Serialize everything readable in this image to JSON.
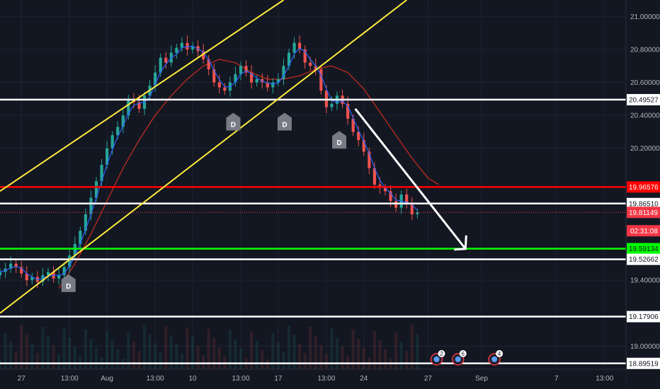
{
  "chart_data": {
    "type": "candlestick",
    "title": "",
    "xlabel": "",
    "ylabel": "",
    "ylim": [
      18.86,
      21.1
    ],
    "grid": true,
    "y_ticks": [
      "21.00000",
      "20.80000",
      "20.60000",
      "20.40000",
      "20.20000",
      "19.40000",
      "19.00000"
    ],
    "x_ticks": [
      {
        "label": "27",
        "t": 2
      },
      {
        "label": "13:00",
        "t": 6.5
      },
      {
        "label": "Aug",
        "t": 10
      },
      {
        "label": "13:00",
        "t": 14.5
      },
      {
        "label": "10",
        "t": 18
      },
      {
        "label": "13:00",
        "t": 22.5
      },
      {
        "label": "17",
        "t": 26
      },
      {
        "label": "13:00",
        "t": 30.5
      },
      {
        "label": "24",
        "t": 34
      },
      {
        "label": "27",
        "t": 40
      },
      {
        "label": "Sep",
        "t": 45
      },
      {
        "label": "7",
        "t": 52
      },
      {
        "label": "13:00",
        "t": 56.5
      }
    ],
    "x_range": [
      0,
      58.5
    ],
    "levels": [
      {
        "price": 20.49527,
        "label": "20.49527",
        "color": "#ffffff",
        "tag_bg": "#ffffff",
        "tag_fg": "#131722"
      },
      {
        "price": 19.96576,
        "label": "19.96576",
        "color": "#ff0000",
        "tag_bg": "#ff0000",
        "tag_fg": "#ffffff"
      },
      {
        "price": 19.8651,
        "label": "19.86510",
        "color": "#ffffff",
        "tag_bg": "#ffffff",
        "tag_fg": "#131722"
      },
      {
        "price": 19.59134,
        "label": "19.59134",
        "color": "#00ff00",
        "tag_bg": "#00ff00",
        "tag_fg": "#131722"
      },
      {
        "price": 19.52662,
        "label": "19.52662",
        "color": "#ffffff",
        "tag_bg": "#ffffff",
        "tag_fg": "#131722"
      },
      {
        "price": 19.17906,
        "label": "19.17906",
        "color": "#ffffff",
        "tag_bg": "#ffffff",
        "tag_fg": "#131722"
      },
      {
        "price": 18.89519,
        "label": "18.89519",
        "color": "#ffffff",
        "tag_bg": "#ffffff",
        "tag_fg": "#131722"
      }
    ],
    "current_price": {
      "price": 19.81149,
      "label": "19.81149",
      "countdown": "02:31:08",
      "color": "#f23645"
    },
    "trendlines": [
      {
        "t1": 0,
        "p1": 19.94,
        "t2": 26.5,
        "p2": 21.1,
        "color": "#ffeb3b"
      },
      {
        "t1": 0,
        "p1": 19.2,
        "t2": 38,
        "p2": 21.1,
        "color": "#ffeb3b"
      }
    ],
    "arrow": {
      "t1": 33.2,
      "p1": 20.44,
      "t2": 43.5,
      "p2": 19.59,
      "color": "#ffffff"
    },
    "markers": [
      {
        "label": "D",
        "t": 6.4,
        "p": 19.38
      },
      {
        "label": "D",
        "t": 21.8,
        "p": 20.36
      },
      {
        "label": "D",
        "t": 26.6,
        "p": 20.36
      },
      {
        "label": "D",
        "t": 31.7,
        "p": 20.25
      }
    ],
    "events": [
      {
        "label": "2",
        "t": 40.8
      },
      {
        "label": "6",
        "t": 42.8
      },
      {
        "label": "4",
        "t": 46.2
      }
    ],
    "slow_ma": {
      "color": "#b22a1e",
      "t": [
        5.5,
        7,
        8.5,
        10,
        11.5,
        13,
        14.5,
        16,
        17.5,
        19,
        20.5,
        22,
        23.5,
        25,
        26.5,
        28,
        29.5,
        31,
        32.5,
        34,
        35.5,
        37,
        38.5,
        40,
        41
      ],
      "p": [
        19.35,
        19.5,
        19.68,
        19.88,
        20.08,
        20.25,
        20.4,
        20.52,
        20.62,
        20.7,
        20.74,
        20.72,
        20.66,
        20.62,
        20.62,
        20.64,
        20.68,
        20.7,
        20.66,
        20.56,
        20.42,
        20.28,
        20.14,
        20.02,
        19.98
      ]
    },
    "series": [
      {
        "name": "",
        "t": [
          0,
          0.5,
          1,
          1.5,
          2,
          2.5,
          3,
          3.5,
          4,
          4.5,
          5,
          5.5,
          6,
          6.5,
          7,
          7.5,
          8,
          8.5,
          9,
          9.5,
          10,
          10.5,
          11,
          11.5,
          12,
          12.5,
          13,
          13.5,
          14,
          14.5,
          15,
          15.5,
          16,
          16.5,
          17,
          17.5,
          18,
          18.5,
          19,
          19.5,
          20,
          20.5,
          21,
          21.5,
          22,
          22.5,
          23,
          23.5,
          24,
          24.5,
          25,
          25.5,
          26,
          26.5,
          27,
          27.5,
          28,
          28.5,
          29,
          29.5,
          30,
          30.5,
          31,
          31.5,
          32,
          32.5,
          33,
          33.5,
          34,
          34.5,
          35,
          35.5,
          36,
          36.5,
          37,
          37.5,
          38,
          38.5,
          39
        ],
        "close": [
          19.45,
          19.47,
          19.5,
          19.48,
          19.44,
          19.4,
          19.42,
          19.39,
          19.43,
          19.45,
          19.41,
          19.43,
          19.48,
          19.55,
          19.62,
          19.7,
          19.8,
          19.9,
          20.0,
          20.1,
          20.2,
          20.28,
          20.33,
          20.4,
          20.5,
          20.48,
          20.44,
          20.52,
          20.58,
          20.66,
          20.75,
          20.72,
          20.78,
          20.81,
          20.84,
          20.8,
          20.82,
          20.79,
          20.74,
          20.68,
          20.6,
          20.57,
          20.55,
          20.6,
          20.65,
          20.7,
          20.66,
          20.6,
          20.62,
          20.6,
          20.57,
          20.6,
          20.62,
          20.7,
          20.78,
          20.84,
          20.8,
          20.72,
          20.7,
          20.68,
          20.55,
          20.45,
          20.47,
          20.52,
          20.47,
          20.38,
          20.3,
          20.25,
          20.18,
          20.08,
          19.98,
          19.96,
          19.94,
          19.88,
          19.84,
          19.92,
          19.86,
          19.8,
          19.81
        ]
      }
    ]
  }
}
